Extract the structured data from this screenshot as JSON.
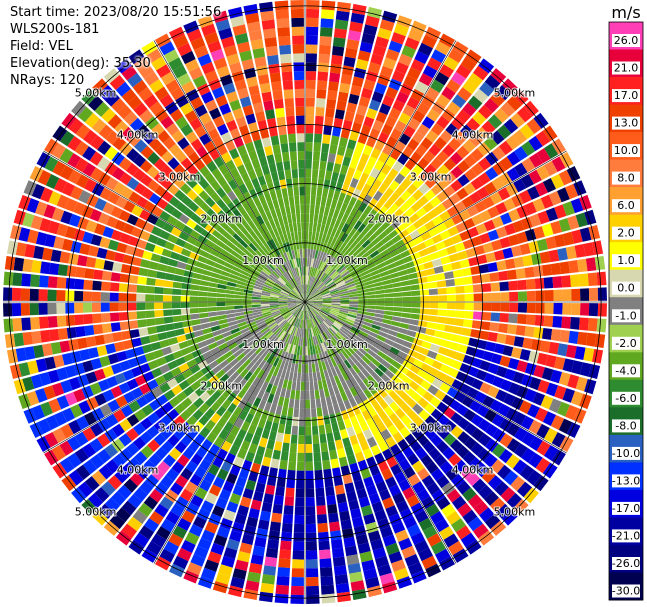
{
  "info": {
    "start_time": "Start time: 2023/08/20 15:51:56",
    "instrument": "WLS200s-181",
    "field": "Field: VEL",
    "elevation": "Elevation(deg): 35.30",
    "nrays": "NRays: 120"
  },
  "chart_data": {
    "type": "heatmap",
    "projection": "polar-ppi",
    "field": "VEL",
    "nrays": 120,
    "elevation_deg": 35.3,
    "range_rings_km": [
      1,
      2,
      3,
      4,
      5
    ],
    "range_ring_labels": [
      "1.00km",
      "2.00km",
      "3.00km",
      "4.00km",
      "5.00km"
    ],
    "max_range_km": 5.1,
    "colorbar": {
      "unit": "m/s",
      "ticks": [
        "26.0",
        "21.0",
        "17.0",
        "13.0",
        "10.0",
        "8.0",
        "6.0",
        "2.0",
        "1.0",
        "0.0",
        "-1.0",
        "-2.0",
        "-4.0",
        "-6.0",
        "-8.0",
        "-10.0",
        "-13.0",
        "-17.0",
        "-21.0",
        "-26.0",
        "-30.0"
      ],
      "colors": [
        "#ff3fb6",
        "#e8003a",
        "#ff2020",
        "#f04000",
        "#ff5c1c",
        "#ff7c3c",
        "#ffa030",
        "#ffd000",
        "#ffff00",
        "#d8d8b0",
        "#808080",
        "#a0d050",
        "#60a820",
        "#2e8b30",
        "#1a6e2a",
        "#2a60c0",
        "#0030ff",
        "#0000e0",
        "#0000a0",
        "#000080",
        "#000050"
      ]
    },
    "range_gate_profile": [
      {
        "range_km": 0.5,
        "dominant_vel": -1.0
      },
      {
        "range_km": 1.5,
        "dominant_vel": -2.0
      },
      {
        "range_km": 2.5,
        "dominant_vel": 2.0
      },
      {
        "range_km": 3.5,
        "dominant_vel": 10.0
      },
      {
        "range_km": 4.5,
        "dominant_vel": 17.0
      }
    ]
  }
}
